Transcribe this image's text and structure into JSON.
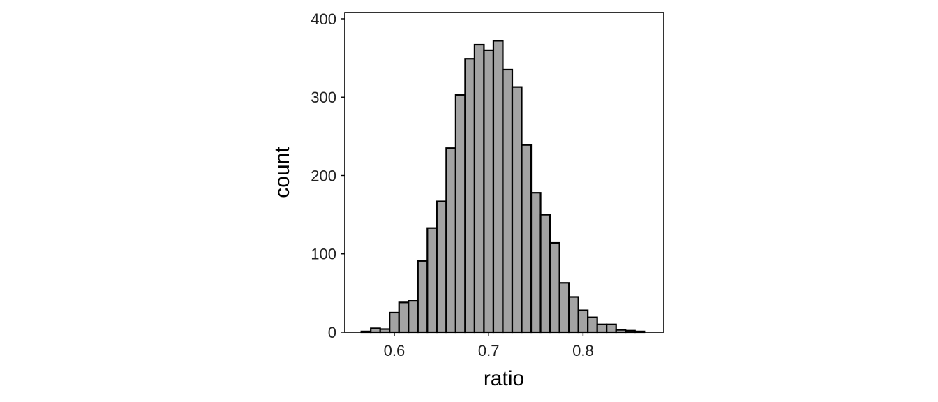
{
  "chart_data": {
    "type": "bar",
    "subtype": "histogram",
    "title": "",
    "xlabel": "ratio",
    "ylabel": "count",
    "xlim": [
      0.5475,
      0.8855
    ],
    "ylim": [
      0,
      408
    ],
    "xticks": [
      0.6,
      0.7,
      0.8
    ],
    "xtick_labels": [
      "0.6",
      "0.7",
      "0.8"
    ],
    "yticks": [
      0,
      100,
      200,
      300,
      400
    ],
    "ytick_labels": [
      "0",
      "100",
      "200",
      "300",
      "400"
    ],
    "grid": false,
    "bar_fill": "#a3a3a3",
    "bar_edge": "#000000",
    "bin_width": 0.01,
    "bins_start": [
      0.555,
      0.565,
      0.575,
      0.585,
      0.595,
      0.605,
      0.615,
      0.625,
      0.635,
      0.645,
      0.655,
      0.665,
      0.675,
      0.685,
      0.695,
      0.705,
      0.715,
      0.725,
      0.735,
      0.745,
      0.755,
      0.765,
      0.775,
      0.785,
      0.795,
      0.805,
      0.815,
      0.825,
      0.835,
      0.845,
      0.855,
      0.865
    ],
    "values": [
      0,
      1,
      5,
      4,
      25,
      38,
      40,
      91,
      133,
      167,
      235,
      303,
      349,
      367,
      360,
      372,
      335,
      313,
      239,
      178,
      150,
      114,
      63,
      45,
      28,
      19,
      10,
      10,
      3,
      2,
      1,
      0
    ]
  }
}
